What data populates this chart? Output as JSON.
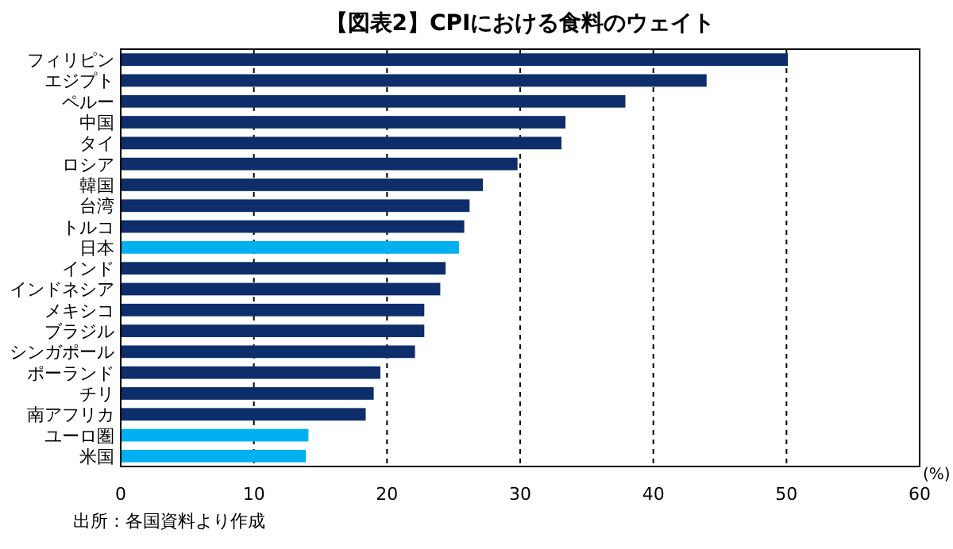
{
  "chart_data": {
    "type": "bar",
    "orientation": "horizontal",
    "title": "【図表2】CPIにおける食料のウェイト",
    "categories": [
      "フィリピン",
      "エジプト",
      "ペルー",
      "中国",
      "タイ",
      "ロシア",
      "韓国",
      "台湾",
      "トルコ",
      "日本",
      "インド",
      "インドネシア",
      "メキシコ",
      "ブラジル",
      "シンガポール",
      "ポーランド",
      "チリ",
      "南アフリカ",
      "ユーロ圏",
      "米国"
    ],
    "values": [
      50.1,
      44.0,
      37.9,
      33.4,
      33.1,
      29.8,
      27.2,
      26.2,
      25.8,
      25.4,
      24.4,
      24.0,
      22.8,
      22.8,
      22.1,
      19.5,
      19.0,
      18.4,
      14.1,
      13.9
    ],
    "colors": [
      "#0d2d6b",
      "#0d2d6b",
      "#0d2d6b",
      "#0d2d6b",
      "#0d2d6b",
      "#0d2d6b",
      "#0d2d6b",
      "#0d2d6b",
      "#0d2d6b",
      "#00b0f0",
      "#0d2d6b",
      "#0d2d6b",
      "#0d2d6b",
      "#0d2d6b",
      "#0d2d6b",
      "#0d2d6b",
      "#0d2d6b",
      "#0d2d6b",
      "#00b0f0",
      "#00b0f0"
    ],
    "xlim": [
      0,
      60
    ],
    "xticks": [
      0,
      10,
      20,
      30,
      40,
      50,
      60
    ],
    "xlabel": "(%)",
    "grid": "x",
    "annotations": [
      "出所：各国資料より作成"
    ]
  }
}
